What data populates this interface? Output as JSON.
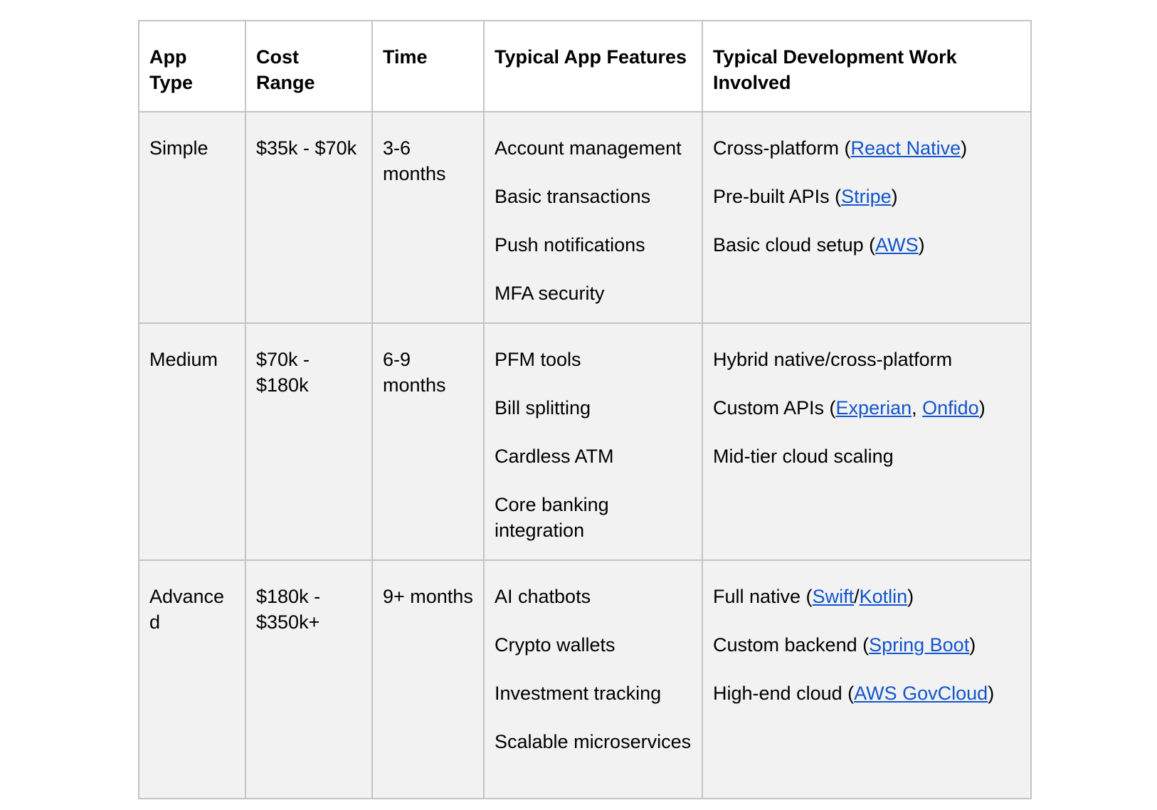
{
  "headers": {
    "app_type": "App Type",
    "cost_range": "Cost Range",
    "time": "Time",
    "typical_features": "Typical App Features",
    "dev_work": "Typical Development Work Involved"
  },
  "rows": [
    {
      "app_type": "Simple",
      "cost_range": "$35k - $70k",
      "time": "3-6 months",
      "features": [
        "Account management",
        "Basic transactions",
        "Push notifications",
        "MFA security"
      ],
      "dev_work": [
        {
          "pre": "Cross-platform (",
          "links": [
            "React Native"
          ],
          "post": ")"
        },
        {
          "pre": "Pre-built APIs (",
          "links": [
            "Stripe"
          ],
          "post": ")"
        },
        {
          "pre": "Basic cloud setup (",
          "links": [
            "AWS"
          ],
          "post": ")"
        }
      ]
    },
    {
      "app_type": "Medium",
      "cost_range": "$70k - $180k",
      "time": "6-9 months",
      "features": [
        "PFM tools",
        "Bill splitting",
        "Cardless ATM",
        "Core banking integration"
      ],
      "dev_work": [
        {
          "text": "Hybrid native/cross-platform"
        },
        {
          "pre": "Custom APIs (",
          "links": [
            "Experian",
            "Onfido"
          ],
          "sep": ", ",
          "post": ")"
        },
        {
          "text": "Mid-tier cloud scaling"
        }
      ]
    },
    {
      "app_type": "Advanced",
      "cost_range": "$180k - $350k+",
      "time": "9+ months",
      "features": [
        "AI chatbots",
        "Crypto wallets",
        "Investment tracking",
        "Scalable microservices"
      ],
      "dev_work": [
        {
          "pre": "Full native (",
          "links": [
            "Swift",
            "Kotlin"
          ],
          "sep": "/",
          "post": ")"
        },
        {
          "pre": "Custom backend (",
          "links": [
            "Spring Boot"
          ],
          "post": ")"
        },
        {
          "pre": "High-end cloud (",
          "links": [
            "AWS GovCloud"
          ],
          "post": ")"
        }
      ]
    }
  ],
  "colors": {
    "link": "#1155cc",
    "border": "#c4c4c4",
    "row_background": "#f2f2f2"
  }
}
